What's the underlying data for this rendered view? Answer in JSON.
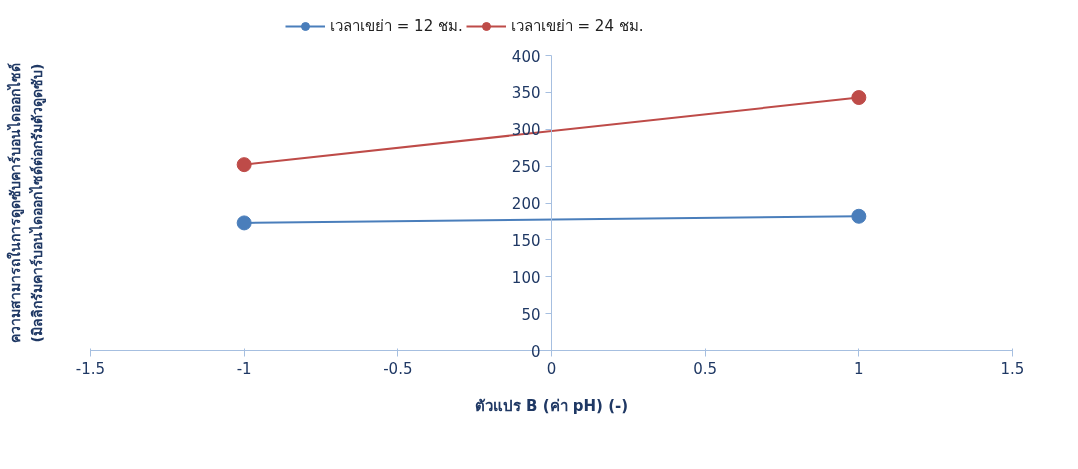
{
  "chart_data": {
    "type": "line",
    "xlabel": "ตัวแปร B (ค่า pH) (-)",
    "ylabel": "ความสามารถในการดูดซับคาร์บอนไดออกไซด์\n(มิลลิกรัมคาร์บอนไดออกไซด์ต่อกรัมตัวดูดซับ)",
    "x": [
      -1,
      1
    ],
    "series": [
      {
        "name": "เวลาเขย่า = 12 ชม.",
        "color": "#4a7ebb",
        "values": [
          173,
          182
        ]
      },
      {
        "name": "เวลาเขย่า = 24 ชม.",
        "color": "#be4b48",
        "values": [
          252,
          343
        ]
      }
    ],
    "xlim": [
      -1.5,
      1.5
    ],
    "xticks": [
      -1.5,
      -1,
      -0.5,
      0,
      0.5,
      1,
      1.5
    ],
    "ylim": [
      0,
      400
    ],
    "yticks": [
      0,
      50,
      100,
      150,
      200,
      250,
      300,
      350,
      400
    ],
    "legend": "top",
    "marker": "circle",
    "grid": false
  }
}
